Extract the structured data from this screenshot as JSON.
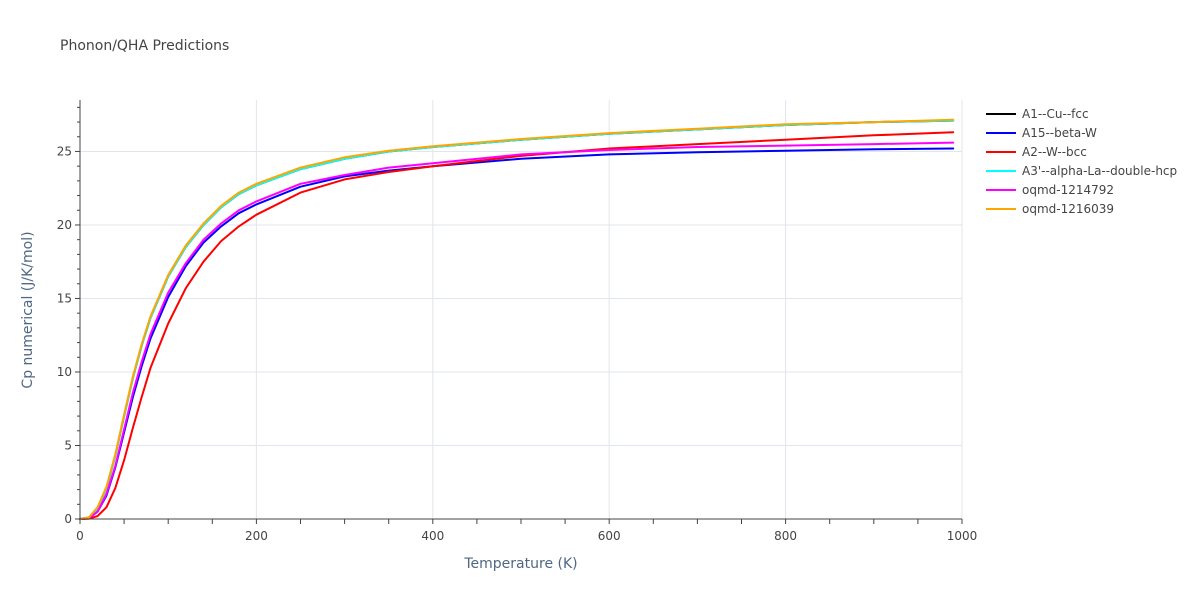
{
  "chart_data": {
    "type": "line",
    "title": "Phonon/QHA Predictions",
    "xlabel": "Temperature (K)",
    "ylabel": "Cp numerical (J/K/mol)",
    "xlim": [
      0,
      1000
    ],
    "ylim": [
      0,
      28.5
    ],
    "xticks": [
      0,
      200,
      400,
      600,
      800,
      1000
    ],
    "yticks": [
      0,
      5,
      10,
      15,
      20,
      25
    ],
    "grid": true,
    "legend_position": "top-right",
    "x": [
      0,
      10,
      20,
      30,
      40,
      50,
      60,
      70,
      80,
      100,
      120,
      140,
      160,
      180,
      200,
      250,
      300,
      350,
      400,
      500,
      600,
      700,
      800,
      900,
      990
    ],
    "series": [
      {
        "name": "A1--Cu--fcc",
        "color": "#000000",
        "values": [
          0,
          0.1,
          0.7,
          2.1,
          4.3,
          7.0,
          9.6,
          11.8,
          13.7,
          16.5,
          18.5,
          20.0,
          21.2,
          22.1,
          22.7,
          23.8,
          24.5,
          25.0,
          25.3,
          25.8,
          26.2,
          26.5,
          26.8,
          27.0,
          27.1
        ]
      },
      {
        "name": "A15--beta-W",
        "color": "#0000ff",
        "values": [
          0,
          0.05,
          0.5,
          1.6,
          3.5,
          5.9,
          8.3,
          10.4,
          12.3,
          15.1,
          17.2,
          18.8,
          19.9,
          20.8,
          21.4,
          22.6,
          23.3,
          23.7,
          24.0,
          24.5,
          24.8,
          24.95,
          25.05,
          25.15,
          25.2
        ]
      },
      {
        "name": "A2--W--bcc",
        "color": "#ff0000",
        "values": [
          0,
          0.02,
          0.2,
          0.8,
          2.1,
          4.0,
          6.2,
          8.3,
          10.3,
          13.3,
          15.7,
          17.5,
          18.9,
          19.9,
          20.7,
          22.2,
          23.1,
          23.6,
          24.0,
          24.7,
          25.2,
          25.5,
          25.8,
          26.1,
          26.3
        ]
      },
      {
        "name": "A3'--alpha-La--double-hcp",
        "color": "#00ffff",
        "values": [
          0,
          0.1,
          0.7,
          2.1,
          4.3,
          7.0,
          9.6,
          11.8,
          13.7,
          16.5,
          18.5,
          20.0,
          21.2,
          22.1,
          22.7,
          23.8,
          24.5,
          25.0,
          25.3,
          25.8,
          26.2,
          26.5,
          26.8,
          27.0,
          27.1
        ]
      },
      {
        "name": "oqmd-1214792",
        "color": "#ff00ff",
        "values": [
          0,
          0.05,
          0.5,
          1.7,
          3.6,
          6.1,
          8.6,
          10.7,
          12.6,
          15.4,
          17.4,
          19.0,
          20.1,
          21.0,
          21.6,
          22.8,
          23.4,
          23.9,
          24.2,
          24.8,
          25.1,
          25.3,
          25.4,
          25.5,
          25.6
        ]
      },
      {
        "name": "oqmd-1216039",
        "color": "#ffa500",
        "values": [
          0,
          0.1,
          0.8,
          2.2,
          4.4,
          7.1,
          9.7,
          11.9,
          13.8,
          16.6,
          18.6,
          20.1,
          21.3,
          22.2,
          22.8,
          23.9,
          24.6,
          25.05,
          25.35,
          25.85,
          26.25,
          26.55,
          26.85,
          27.0,
          27.15
        ]
      }
    ]
  }
}
